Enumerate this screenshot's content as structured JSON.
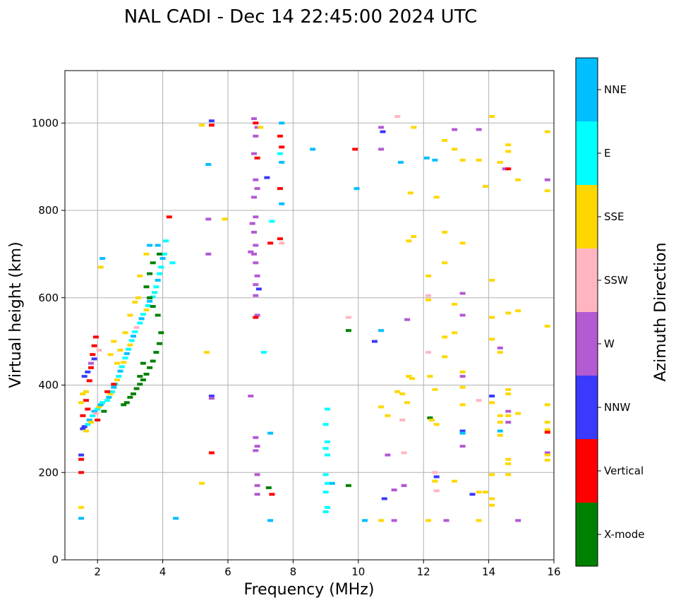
{
  "chart_data": {
    "type": "scatter",
    "title": "NAL CADI - Dec 14 22:45:00 2024 UTC",
    "xlabel": "Frequency (MHz)",
    "ylabel": "Virtual height (km)",
    "xlim": [
      1,
      16
    ],
    "ylim": [
      0,
      1120
    ],
    "xticks": [
      2,
      4,
      6,
      8,
      10,
      12,
      14,
      16
    ],
    "yticks": [
      0,
      200,
      400,
      600,
      800,
      1000
    ],
    "grid": true,
    "colorbar": {
      "label": "Azimuth Direction",
      "categories": [
        {
          "name": "X-mode",
          "color": "#008000"
        },
        {
          "name": "Vertical",
          "color": "#ff0000"
        },
        {
          "name": "NNW",
          "color": "#3a3aff"
        },
        {
          "name": "W",
          "color": "#b45ad2"
        },
        {
          "name": "SSW",
          "color": "#ffb6c1"
        },
        {
          "name": "SSE",
          "color": "#ffd700"
        },
        {
          "name": "E",
          "color": "#00ffff"
        },
        {
          "name": "NNE",
          "color": "#00bfff"
        }
      ]
    },
    "points": [
      [
        1.55,
        300,
        "NNW"
      ],
      [
        1.6,
        305,
        "NNW"
      ],
      [
        1.65,
        295,
        "SSE"
      ],
      [
        1.7,
        310,
        "E"
      ],
      [
        1.75,
        320,
        "NNE"
      ],
      [
        1.8,
        315,
        "SSE"
      ],
      [
        1.85,
        330,
        "E"
      ],
      [
        1.9,
        340,
        "NNE"
      ],
      [
        1.95,
        335,
        "SSW"
      ],
      [
        2.0,
        345,
        "E"
      ],
      [
        2.05,
        350,
        "SSE"
      ],
      [
        2.1,
        355,
        "NNE"
      ],
      [
        2.15,
        360,
        "E"
      ],
      [
        2.2,
        340,
        "X-mode"
      ],
      [
        2.3,
        365,
        "E"
      ],
      [
        2.35,
        372,
        "NNE"
      ],
      [
        2.4,
        380,
        "SSE"
      ],
      [
        2.45,
        385,
        "E"
      ],
      [
        2.5,
        395,
        "NNE"
      ],
      [
        2.55,
        402,
        "E"
      ],
      [
        2.6,
        412,
        "SSE"
      ],
      [
        2.65,
        420,
        "E"
      ],
      [
        2.7,
        432,
        "NNE"
      ],
      [
        2.75,
        442,
        "E"
      ],
      [
        2.8,
        452,
        "SSE"
      ],
      [
        2.85,
        462,
        "E"
      ],
      [
        2.9,
        472,
        "NNE"
      ],
      [
        2.95,
        482,
        "E"
      ],
      [
        3.0,
        492,
        "SSE"
      ],
      [
        3.05,
        502,
        "E"
      ],
      [
        3.1,
        512,
        "NNE"
      ],
      [
        3.15,
        522,
        "E"
      ],
      [
        3.2,
        532,
        "SSW"
      ],
      [
        3.3,
        542,
        "E"
      ],
      [
        3.35,
        552,
        "NNE"
      ],
      [
        3.4,
        562,
        "E"
      ],
      [
        3.5,
        572,
        "SSE"
      ],
      [
        3.55,
        582,
        "E"
      ],
      [
        3.6,
        592,
        "NNE"
      ],
      [
        3.7,
        602,
        "E"
      ],
      [
        3.75,
        612,
        "E"
      ],
      [
        3.8,
        625,
        "E"
      ],
      [
        3.85,
        640,
        "NNE"
      ],
      [
        3.9,
        655,
        "E"
      ],
      [
        3.95,
        670,
        "E"
      ],
      [
        4.0,
        690,
        "NNE"
      ],
      [
        4.05,
        700,
        "E"
      ],
      [
        4.1,
        730,
        "E"
      ],
      [
        2.8,
        355,
        "X-mode"
      ],
      [
        2.9,
        360,
        "X-mode"
      ],
      [
        3.0,
        372,
        "X-mode"
      ],
      [
        3.1,
        380,
        "X-mode"
      ],
      [
        3.2,
        392,
        "X-mode"
      ],
      [
        3.3,
        402,
        "X-mode"
      ],
      [
        3.4,
        412,
        "X-mode"
      ],
      [
        3.5,
        425,
        "X-mode"
      ],
      [
        3.6,
        440,
        "X-mode"
      ],
      [
        3.7,
        455,
        "X-mode"
      ],
      [
        3.8,
        475,
        "X-mode"
      ],
      [
        3.9,
        495,
        "X-mode"
      ],
      [
        3.95,
        520,
        "X-mode"
      ],
      [
        3.85,
        560,
        "X-mode"
      ],
      [
        3.7,
        580,
        "X-mode"
      ],
      [
        3.6,
        600,
        "X-mode"
      ],
      [
        3.5,
        625,
        "X-mode"
      ],
      [
        3.6,
        655,
        "X-mode"
      ],
      [
        3.7,
        680,
        "X-mode"
      ],
      [
        3.9,
        700,
        "X-mode"
      ],
      [
        3.4,
        450,
        "X-mode"
      ],
      [
        3.3,
        420,
        "X-mode"
      ],
      [
        1.55,
        330,
        "Vertical"
      ],
      [
        1.7,
        345,
        "Vertical"
      ],
      [
        1.8,
        440,
        "Vertical"
      ],
      [
        1.85,
        470,
        "Vertical"
      ],
      [
        1.9,
        490,
        "Vertical"
      ],
      [
        1.95,
        510,
        "Vertical"
      ],
      [
        2.0,
        320,
        "Vertical"
      ],
      [
        2.3,
        385,
        "Vertical"
      ],
      [
        2.5,
        402,
        "Vertical"
      ],
      [
        1.65,
        365,
        "Vertical"
      ],
      [
        1.75,
        410,
        "Vertical"
      ],
      [
        1.6,
        420,
        "NNW"
      ],
      [
        1.7,
        430,
        "NNW"
      ],
      [
        1.8,
        450,
        "W"
      ],
      [
        1.9,
        460,
        "NNW"
      ],
      [
        2.05,
        480,
        "SSW"
      ],
      [
        1.65,
        385,
        "SSE"
      ],
      [
        1.55,
        380,
        "SSE"
      ],
      [
        1.5,
        360,
        "SSE"
      ],
      [
        2.6,
        450,
        "SSE"
      ],
      [
        2.7,
        480,
        "SSE"
      ],
      [
        2.85,
        520,
        "SSE"
      ],
      [
        3.0,
        560,
        "SSE"
      ],
      [
        3.15,
        590,
        "SSE"
      ],
      [
        3.25,
        600,
        "SSE"
      ],
      [
        3.3,
        650,
        "SSE"
      ],
      [
        3.5,
        700,
        "SSE"
      ],
      [
        2.5,
        500,
        "SSE"
      ],
      [
        2.4,
        470,
        "SSE"
      ],
      [
        3.85,
        720,
        "NNE"
      ],
      [
        3.6,
        720,
        "NNE"
      ],
      [
        2.1,
        670,
        "SSE"
      ],
      [
        2.15,
        690,
        "NNE"
      ],
      [
        4.3,
        680,
        "E"
      ],
      [
        4.4,
        95,
        "NNE"
      ],
      [
        1.5,
        120,
        "SSE"
      ],
      [
        1.5,
        95,
        "NNE"
      ],
      [
        1.5,
        240,
        "NNW"
      ],
      [
        1.5,
        230,
        "Vertical"
      ],
      [
        1.5,
        200,
        "Vertical"
      ],
      [
        4.2,
        785,
        "Vertical"
      ],
      [
        5.5,
        1005,
        "NNW"
      ],
      [
        5.5,
        995,
        "Vertical"
      ],
      [
        5.2,
        995,
        "SSE"
      ],
      [
        5.4,
        905,
        "NNE"
      ],
      [
        5.4,
        780,
        "W"
      ],
      [
        5.9,
        780,
        "SSE"
      ],
      [
        5.4,
        700,
        "W"
      ],
      [
        5.35,
        475,
        "SSE"
      ],
      [
        5.5,
        375,
        "NNW"
      ],
      [
        5.5,
        370,
        "W"
      ],
      [
        5.5,
        245,
        "Vertical"
      ],
      [
        5.2,
        175,
        "SSE"
      ],
      [
        6.8,
        1010,
        "W"
      ],
      [
        6.85,
        1000,
        "Vertical"
      ],
      [
        6.9,
        990,
        "W"
      ],
      [
        6.85,
        970,
        "W"
      ],
      [
        6.8,
        930,
        "W"
      ],
      [
        6.9,
        920,
        "Vertical"
      ],
      [
        6.85,
        870,
        "W"
      ],
      [
        6.9,
        850,
        "W"
      ],
      [
        6.8,
        830,
        "W"
      ],
      [
        6.85,
        785,
        "W"
      ],
      [
        6.75,
        770,
        "W"
      ],
      [
        6.8,
        750,
        "W"
      ],
      [
        6.85,
        720,
        "W"
      ],
      [
        6.7,
        705,
        "W"
      ],
      [
        6.8,
        700,
        "W"
      ],
      [
        6.85,
        680,
        "W"
      ],
      [
        6.9,
        650,
        "W"
      ],
      [
        6.85,
        630,
        "W"
      ],
      [
        6.95,
        620,
        "NNW"
      ],
      [
        6.85,
        605,
        "W"
      ],
      [
        6.9,
        560,
        "W"
      ],
      [
        6.85,
        555,
        "Vertical"
      ],
      [
        6.7,
        375,
        "W"
      ],
      [
        6.85,
        280,
        "W"
      ],
      [
        6.9,
        260,
        "W"
      ],
      [
        6.85,
        250,
        "W"
      ],
      [
        6.9,
        195,
        "W"
      ],
      [
        6.9,
        170,
        "W"
      ],
      [
        6.9,
        150,
        "W"
      ],
      [
        7.0,
        990,
        "SSE"
      ],
      [
        7.1,
        475,
        "E"
      ],
      [
        7.2,
        875,
        "NNW"
      ],
      [
        7.3,
        725,
        "Vertical"
      ],
      [
        7.35,
        775,
        "E"
      ],
      [
        7.3,
        290,
        "NNE"
      ],
      [
        7.25,
        165,
        "X-mode"
      ],
      [
        7.35,
        150,
        "Vertical"
      ],
      [
        7.3,
        90,
        "NNE"
      ],
      [
        7.65,
        1000,
        "NNE"
      ],
      [
        7.6,
        970,
        "Vertical"
      ],
      [
        7.65,
        945,
        "Vertical"
      ],
      [
        7.6,
        930,
        "E"
      ],
      [
        7.65,
        910,
        "NNE"
      ],
      [
        7.6,
        850,
        "Vertical"
      ],
      [
        7.65,
        815,
        "NNE"
      ],
      [
        7.6,
        735,
        "Vertical"
      ],
      [
        7.65,
        725,
        "SSW"
      ],
      [
        8.6,
        940,
        "NNE"
      ],
      [
        9.9,
        940,
        "Vertical"
      ],
      [
        9.95,
        850,
        "NNE"
      ],
      [
        9.7,
        555,
        "SSW"
      ],
      [
        9.7,
        525,
        "X-mode"
      ],
      [
        9.05,
        345,
        "E"
      ],
      [
        9.0,
        310,
        "E"
      ],
      [
        9.05,
        270,
        "E"
      ],
      [
        9.0,
        255,
        "E"
      ],
      [
        9.05,
        240,
        "E"
      ],
      [
        9.0,
        195,
        "E"
      ],
      [
        9.05,
        175,
        "E"
      ],
      [
        9.0,
        155,
        "E"
      ],
      [
        9.05,
        120,
        "E"
      ],
      [
        9.0,
        110,
        "E"
      ],
      [
        9.2,
        175,
        "NNE"
      ],
      [
        9.7,
        170,
        "X-mode"
      ],
      [
        10.2,
        90,
        "NNE"
      ],
      [
        10.7,
        990,
        "W"
      ],
      [
        10.75,
        980,
        "NNW"
      ],
      [
        10.7,
        940,
        "W"
      ],
      [
        10.7,
        525,
        "NNE"
      ],
      [
        10.5,
        500,
        "NNW"
      ],
      [
        10.7,
        350,
        "SSE"
      ],
      [
        10.9,
        330,
        "SSE"
      ],
      [
        10.9,
        240,
        "W"
      ],
      [
        10.8,
        140,
        "NNW"
      ],
      [
        10.7,
        90,
        "SSE"
      ],
      [
        11.1,
        90,
        "W"
      ],
      [
        11.2,
        1015,
        "SSW"
      ],
      [
        11.3,
        910,
        "NNE"
      ],
      [
        11.7,
        990,
        "SSE"
      ],
      [
        11.6,
        840,
        "SSE"
      ],
      [
        11.7,
        740,
        "SSE"
      ],
      [
        11.55,
        730,
        "SSE"
      ],
      [
        11.5,
        550,
        "W"
      ],
      [
        11.55,
        420,
        "SSE"
      ],
      [
        11.65,
        415,
        "SSE"
      ],
      [
        11.2,
        385,
        "SSE"
      ],
      [
        11.35,
        380,
        "SSE"
      ],
      [
        11.5,
        360,
        "SSE"
      ],
      [
        11.35,
        320,
        "SSW"
      ],
      [
        11.4,
        245,
        "SSW"
      ],
      [
        11.4,
        170,
        "W"
      ],
      [
        11.1,
        160,
        "W"
      ],
      [
        11.4,
        170,
        "W"
      ],
      [
        12.1,
        920,
        "NNE"
      ],
      [
        12.35,
        915,
        "NNE"
      ],
      [
        12.4,
        830,
        "SSE"
      ],
      [
        12.15,
        650,
        "SSE"
      ],
      [
        12.15,
        605,
        "SSW"
      ],
      [
        12.15,
        595,
        "SSE"
      ],
      [
        12.15,
        475,
        "SSW"
      ],
      [
        12.2,
        420,
        "SSE"
      ],
      [
        12.35,
        390,
        "SSE"
      ],
      [
        12.2,
        325,
        "X-mode"
      ],
      [
        12.25,
        320,
        "SSE"
      ],
      [
        12.4,
        310,
        "SSE"
      ],
      [
        12.35,
        200,
        "SSW"
      ],
      [
        12.4,
        190,
        "NNW"
      ],
      [
        12.35,
        180,
        "SSE"
      ],
      [
        12.4,
        158,
        "SSW"
      ],
      [
        12.15,
        90,
        "SSE"
      ],
      [
        12.7,
        90,
        "W"
      ],
      [
        12.65,
        960,
        "SSE"
      ],
      [
        12.95,
        985,
        "W"
      ],
      [
        12.95,
        940,
        "SSE"
      ],
      [
        13.2,
        915,
        "SSE"
      ],
      [
        12.65,
        750,
        "SSE"
      ],
      [
        13.2,
        725,
        "SSE"
      ],
      [
        12.65,
        680,
        "SSE"
      ],
      [
        13.2,
        610,
        "W"
      ],
      [
        12.95,
        585,
        "SSE"
      ],
      [
        13.2,
        560,
        "W"
      ],
      [
        12.95,
        520,
        "SSE"
      ],
      [
        12.65,
        510,
        "SSE"
      ],
      [
        12.65,
        465,
        "SSE"
      ],
      [
        13.2,
        430,
        "SSE"
      ],
      [
        13.2,
        420,
        "W"
      ],
      [
        13.2,
        395,
        "SSE"
      ],
      [
        13.2,
        355,
        "SSE"
      ],
      [
        13.2,
        295,
        "NNW"
      ],
      [
        13.2,
        290,
        "NNE"
      ],
      [
        13.2,
        260,
        "W"
      ],
      [
        12.95,
        180,
        "SSE"
      ],
      [
        13.5,
        150,
        "NNW"
      ],
      [
        13.7,
        155,
        "SSE"
      ],
      [
        13.7,
        985,
        "W"
      ],
      [
        13.7,
        915,
        "SSE"
      ],
      [
        13.9,
        855,
        "SSE"
      ],
      [
        14.1,
        1015,
        "SSE"
      ],
      [
        14.1,
        640,
        "SSE"
      ],
      [
        14.1,
        555,
        "SSE"
      ],
      [
        14.1,
        505,
        "SSE"
      ],
      [
        13.7,
        365,
        "SSW"
      ],
      [
        14.1,
        375,
        "NNW"
      ],
      [
        14.1,
        360,
        "SSE"
      ],
      [
        14.1,
        195,
        "SSE"
      ],
      [
        13.9,
        155,
        "SSE"
      ],
      [
        14.1,
        140,
        "SSE"
      ],
      [
        14.1,
        125,
        "SSE"
      ],
      [
        13.7,
        90,
        "SSE"
      ],
      [
        14.6,
        950,
        "SSE"
      ],
      [
        14.6,
        935,
        "SSE"
      ],
      [
        14.35,
        910,
        "SSE"
      ],
      [
        14.5,
        895,
        "W"
      ],
      [
        14.6,
        895,
        "Vertical"
      ],
      [
        14.9,
        870,
        "SSE"
      ],
      [
        14.9,
        570,
        "SSE"
      ],
      [
        14.6,
        565,
        "SSE"
      ],
      [
        14.35,
        485,
        "W"
      ],
      [
        14.35,
        475,
        "SSE"
      ],
      [
        14.6,
        390,
        "SSE"
      ],
      [
        14.6,
        380,
        "SSE"
      ],
      [
        14.6,
        340,
        "W"
      ],
      [
        14.6,
        330,
        "SSE"
      ],
      [
        14.35,
        330,
        "SSE"
      ],
      [
        14.9,
        335,
        "SSE"
      ],
      [
        14.35,
        315,
        "SSE"
      ],
      [
        14.6,
        315,
        "W"
      ],
      [
        14.35,
        295,
        "NNE"
      ],
      [
        14.35,
        285,
        "SSE"
      ],
      [
        14.6,
        230,
        "SSE"
      ],
      [
        14.6,
        220,
        "SSE"
      ],
      [
        14.6,
        195,
        "SSE"
      ],
      [
        14.9,
        90,
        "W"
      ],
      [
        15.8,
        980,
        "SSE"
      ],
      [
        15.8,
        870,
        "W"
      ],
      [
        15.8,
        845,
        "SSE"
      ],
      [
        15.8,
        535,
        "SSE"
      ],
      [
        15.8,
        355,
        "SSE"
      ],
      [
        15.8,
        315,
        "SSE"
      ],
      [
        15.8,
        298,
        "SSE"
      ],
      [
        15.8,
        292,
        "Vertical"
      ],
      [
        15.8,
        245,
        "W"
      ],
      [
        15.8,
        240,
        "SSE"
      ],
      [
        15.8,
        228,
        "SSE"
      ]
    ]
  }
}
